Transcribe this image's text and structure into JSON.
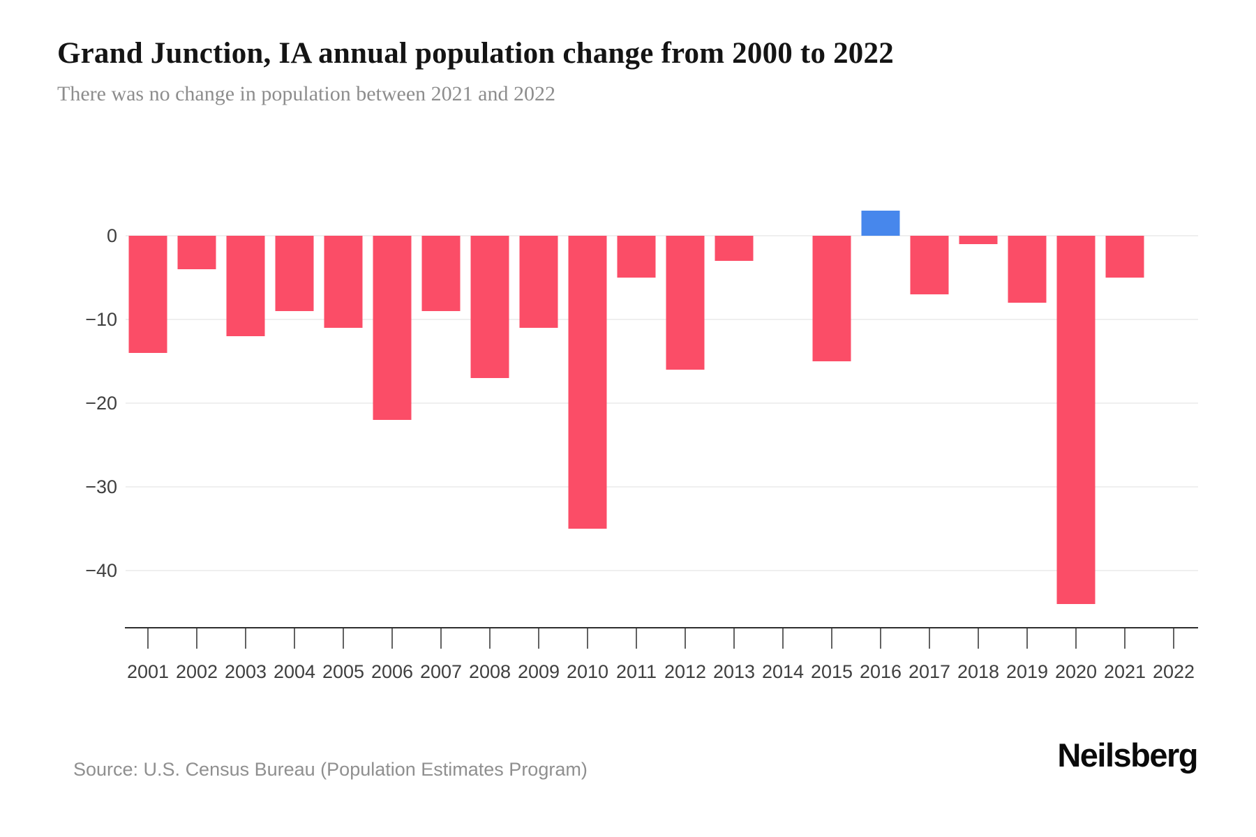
{
  "page": {
    "title": "Grand Junction, IA annual population change from 2000 to 2022",
    "subtitle": "There was no change in population between 2021 and 2022",
    "source": "Source: U.S. Census Bureau (Population Estimates Program)",
    "brand": "Neilsberg"
  },
  "chart_data": {
    "type": "bar",
    "title": "Grand Junction, IA annual population change from 2000 to 2022",
    "subtitle": "There was no change in population between 2021 and 2022",
    "categories": [
      "2001",
      "2002",
      "2003",
      "2004",
      "2005",
      "2006",
      "2007",
      "2008",
      "2009",
      "2010",
      "2011",
      "2012",
      "2013",
      "2014",
      "2015",
      "2016",
      "2017",
      "2018",
      "2019",
      "2020",
      "2021",
      "2022"
    ],
    "values": [
      -14,
      -4,
      -12,
      -9,
      -11,
      -22,
      -9,
      -17,
      -11,
      -35,
      -5,
      -16,
      -3,
      0,
      -15,
      3,
      -7,
      -1,
      -8,
      -44,
      -5,
      0
    ],
    "ylabel": "",
    "xlabel": "",
    "yticks": [
      0,
      -10,
      -20,
      -30,
      -40
    ],
    "ytick_labels": [
      "0",
      "−10",
      "−20",
      "−30",
      "−40"
    ],
    "ylim": [
      -47,
      5
    ],
    "grid": "horizontal",
    "legend": "none",
    "colors": {
      "negative_bar": "#FB4D67",
      "positive_bar": "#4787EC",
      "gridline": "#efefef",
      "axis": "#2e2e2e",
      "tick_label": "#3f3f3f"
    }
  }
}
